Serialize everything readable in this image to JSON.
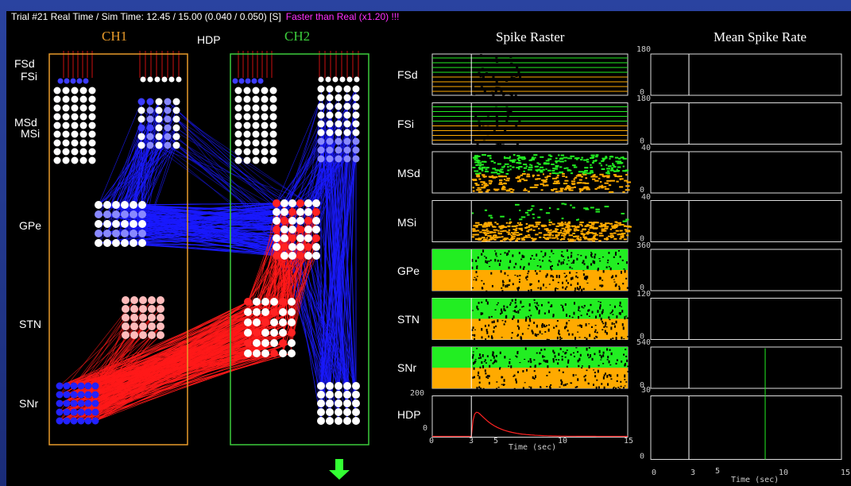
{
  "window": {
    "trial_text": "Trial #21 Real Time / Sim Time: 12.45 / 15.00 (0.040 / 0.050) [S]",
    "status_text": "Faster than Real (x1.20) !!!"
  },
  "network": {
    "ch1_label": "CH1",
    "ch2_label": "CH2",
    "hdp_label": "HDP",
    "nuclei": [
      "FSd",
      "FSi",
      "MSd",
      "MSi",
      "GPe",
      "STN",
      "SNr"
    ],
    "colors": {
      "ch1": "#e89a2a",
      "ch2": "#3ccc3c",
      "inhibitory": "#1a1aff",
      "excitatory": "#ff1a1a",
      "output_arrow": "#33ff33"
    }
  },
  "raster": {
    "title": "Spike Raster",
    "rows": [
      "FSd",
      "FSi",
      "MSd",
      "MSi",
      "GPe",
      "STN",
      "SNr",
      "HDP"
    ],
    "hdp_ylabels": [
      "200",
      "0"
    ],
    "x_ticks": [
      "0",
      "3",
      "5",
      "10",
      "15"
    ],
    "x_label": "Time (sec)"
  },
  "rate": {
    "title": "Mean Spike Rate",
    "ymax_labels": [
      "180",
      "180",
      "40",
      "40",
      "360",
      "120",
      "540",
      "30"
    ],
    "y0_label": "0",
    "x_ticks": [
      "0",
      "3",
      "5",
      "10",
      "15"
    ],
    "x_label": "Time (sec)"
  }
}
